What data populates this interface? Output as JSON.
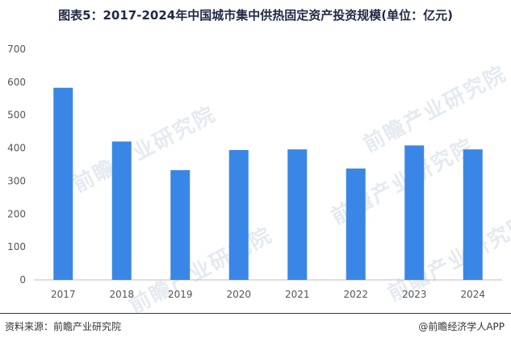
{
  "title": "图表5：2017-2024年中国城市集中供热固定资产投资规模(单位：亿元)",
  "watermark": "前瞻产业研究院",
  "footer": {
    "source": "资料来源：前瞻产业研究院",
    "credit": "@前瞻经济学人APP"
  },
  "colors": {
    "bar": "#3a86e6",
    "axis": "#bfbfbf"
  },
  "chart_data": {
    "type": "bar",
    "title": "图表5：2017-2024年中国城市集中供热固定资产投资规模(单位：亿元)",
    "xlabel": "",
    "ylabel": "",
    "categories": [
      "2017",
      "2018",
      "2019",
      "2020",
      "2021",
      "2022",
      "2023",
      "2024"
    ],
    "values": [
      583,
      420,
      333,
      394,
      396,
      338,
      408,
      396
    ],
    "ylim": [
      0,
      700
    ],
    "yticks": [
      0,
      100,
      200,
      300,
      400,
      500,
      600,
      700
    ],
    "grid": false,
    "legend": "none"
  }
}
